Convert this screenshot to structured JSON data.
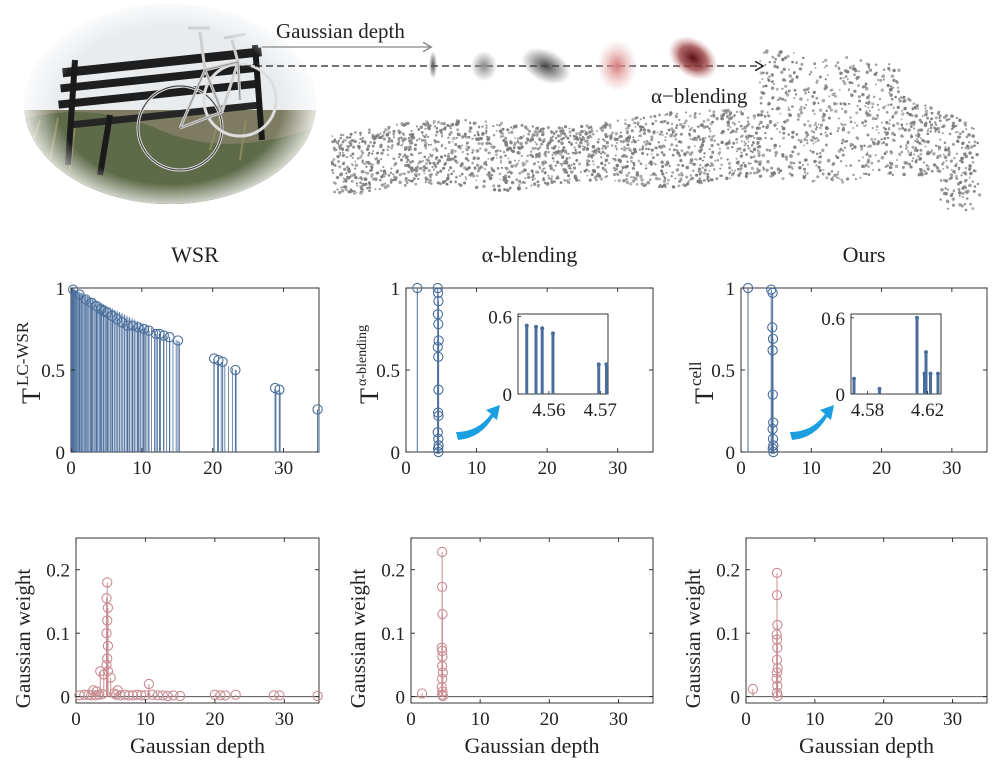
{
  "colors": {
    "stem_blue": "#4a6e9c",
    "stem_pink": "#c98d92",
    "arrow_cyan": "#1a9fe0",
    "axis": "#222222",
    "cloud_grey": "#7a7a7a",
    "gauss_dark": "#6b1c1c",
    "gauss_red": "#d88a8a",
    "gauss_grey": "#6f6f6f"
  },
  "illustration": {
    "depth_label": "Gaussian depth",
    "blend_label": "α−blending",
    "image_icon": "bench-bicycle-photo-icon",
    "cloud_icon": "point-cloud-icon"
  },
  "chart_data": [
    {
      "type": "stem",
      "id": "wsr-transmittance",
      "title": "WSR",
      "ylabel": "T",
      "ylabel_sup": "LC-WSR",
      "xlim": [
        0,
        35
      ],
      "ylim": [
        0,
        1
      ],
      "xticks": [
        "0",
        "10",
        "20",
        "30"
      ],
      "yticks": [
        "0",
        "0.5",
        "1"
      ],
      "grid": false,
      "markers": [
        [
          0.3,
          0.99
        ],
        [
          1.2,
          0.96
        ],
        [
          2.1,
          0.93
        ],
        [
          2.9,
          0.91
        ],
        [
          3.6,
          0.89
        ],
        [
          4.2,
          0.87
        ],
        [
          4.6,
          0.86
        ],
        [
          5.1,
          0.85
        ],
        [
          5.8,
          0.83
        ],
        [
          6.5,
          0.81
        ],
        [
          7.2,
          0.79
        ],
        [
          8.0,
          0.77
        ],
        [
          8.7,
          0.77
        ],
        [
          9.5,
          0.76
        ],
        [
          10.3,
          0.75
        ],
        [
          11.0,
          0.74
        ],
        [
          12.0,
          0.72
        ],
        [
          12.5,
          0.72
        ],
        [
          13.1,
          0.71
        ],
        [
          13.9,
          0.7
        ],
        [
          15.1,
          0.68
        ],
        [
          20.2,
          0.57
        ],
        [
          20.8,
          0.56
        ],
        [
          21.4,
          0.55
        ],
        [
          23.2,
          0.5
        ],
        [
          28.8,
          0.39
        ],
        [
          29.4,
          0.38
        ],
        [
          34.8,
          0.26
        ]
      ],
      "stem_fill": [
        [
          0.05,
          1.0
        ],
        [
          35.0,
          0.25
        ]
      ],
      "stem_fill_count": 90
    },
    {
      "type": "stem",
      "id": "alpha-transmittance",
      "title": "α-blending",
      "ylabel": "T",
      "ylabel_sup": "α-blending",
      "xlim": [
        0,
        35
      ],
      "ylim": [
        0,
        1
      ],
      "xticks": [
        "0",
        "10",
        "20",
        "30"
      ],
      "yticks": [
        "0",
        "0.5",
        "1"
      ],
      "grid": false,
      "markers": [
        [
          1.6,
          1.0
        ],
        [
          4.5,
          1.0
        ],
        [
          4.55,
          0.97
        ],
        [
          4.6,
          0.92
        ],
        [
          4.52,
          0.84
        ],
        [
          4.58,
          0.78
        ],
        [
          4.62,
          0.68
        ],
        [
          4.5,
          0.64
        ],
        [
          4.57,
          0.58
        ],
        [
          4.6,
          0.38
        ],
        [
          4.55,
          0.24
        ],
        [
          4.6,
          0.22
        ],
        [
          4.5,
          0.12
        ],
        [
          4.58,
          0.08
        ],
        [
          4.62,
          0.04
        ],
        [
          4.55,
          0.02
        ],
        [
          4.6,
          0.0
        ]
      ],
      "inset": {
        "xlim": [
          4.554,
          4.5715
        ],
        "ylim": [
          0,
          0.62
        ],
        "xticks": [
          "4.56",
          "4.57"
        ],
        "xtick_vals": [
          4.56,
          4.57
        ],
        "yticks": [
          "0",
          "0.6"
        ],
        "ytick_vals": [
          0,
          0.6
        ],
        "stems": [
          [
            4.5557,
            0.53
          ],
          [
            4.5575,
            0.52
          ],
          [
            4.5587,
            0.51
          ],
          [
            4.5608,
            0.47
          ],
          [
            4.5697,
            0.23
          ],
          [
            4.5712,
            0.23
          ]
        ]
      }
    },
    {
      "type": "stem",
      "id": "ours-transmittance",
      "title": "Ours",
      "ylabel": "T",
      "ylabel_sup": "cell",
      "xlim": [
        0,
        35
      ],
      "ylim": [
        0,
        1
      ],
      "xticks": [
        "0",
        "10",
        "20",
        "30"
      ],
      "yticks": [
        "0",
        "0.5",
        "1"
      ],
      "grid": false,
      "markers": [
        [
          1.0,
          1.0
        ],
        [
          4.3,
          0.99
        ],
        [
          4.5,
          0.97
        ],
        [
          4.45,
          0.76
        ],
        [
          4.55,
          0.69
        ],
        [
          4.5,
          0.62
        ],
        [
          4.52,
          0.35
        ],
        [
          4.58,
          0.18
        ],
        [
          4.5,
          0.14
        ],
        [
          4.55,
          0.08
        ],
        [
          4.6,
          0.04
        ],
        [
          4.52,
          0.02
        ],
        [
          4.6,
          0.0
        ]
      ],
      "inset": {
        "xlim": [
          4.569,
          4.629
        ],
        "ylim": [
          0,
          0.63
        ],
        "xticks": [
          "4.58",
          "4.62"
        ],
        "xtick_vals": [
          4.58,
          4.62
        ],
        "yticks": [
          "0",
          "0.6"
        ],
        "ytick_vals": [
          0,
          0.6
        ],
        "stems": [
          [
            4.571,
            0.12
          ],
          [
            4.588,
            0.04
          ],
          [
            4.613,
            0.6
          ],
          [
            4.618,
            0.16
          ],
          [
            4.619,
            0.33
          ],
          [
            4.622,
            0.16
          ],
          [
            4.627,
            0.16
          ]
        ]
      }
    },
    {
      "type": "stem",
      "id": "wsr-weight",
      "title": "",
      "ylabel": "Gaussian weight",
      "xlabel": "Gaussian depth",
      "xlim": [
        0,
        35
      ],
      "ylim": [
        -0.01,
        0.25
      ],
      "xticks": [
        "0",
        "10",
        "20",
        "30"
      ],
      "yticks": [
        "0",
        "0.1",
        "0.2"
      ],
      "baseline": true,
      "grid": false,
      "markers": [
        [
          4.5,
          0.18
        ],
        [
          4.4,
          0.155
        ],
        [
          4.6,
          0.14
        ],
        [
          4.5,
          0.12
        ],
        [
          4.4,
          0.1
        ],
        [
          4.6,
          0.08
        ],
        [
          4.5,
          0.06
        ],
        [
          4.4,
          0.05
        ],
        [
          4.6,
          0.04
        ],
        [
          3.5,
          0.04
        ],
        [
          4.0,
          0.035
        ],
        [
          5.0,
          0.03
        ],
        [
          6.0,
          0.01
        ],
        [
          10.5,
          0.02
        ],
        [
          2.5,
          0.01
        ],
        [
          3.0,
          0.008
        ],
        [
          5.5,
          0.005
        ],
        [
          0.5,
          0.002
        ],
        [
          1.2,
          0.003
        ],
        [
          1.8,
          0.003
        ],
        [
          2.2,
          0.002
        ],
        [
          2.8,
          0.002
        ],
        [
          3.3,
          0.003
        ],
        [
          3.8,
          0.004
        ],
        [
          5.8,
          0.003
        ],
        [
          6.4,
          0.002
        ],
        [
          7.0,
          0.003
        ],
        [
          7.6,
          0.002
        ],
        [
          8.2,
          0.002
        ],
        [
          8.8,
          0.003
        ],
        [
          9.4,
          0.002
        ],
        [
          10.0,
          0.002
        ],
        [
          11.0,
          0.003
        ],
        [
          11.8,
          0.002
        ],
        [
          12.5,
          0.002
        ],
        [
          13.2,
          0.001
        ],
        [
          14.0,
          0.002
        ],
        [
          15.0,
          0.001
        ],
        [
          20.0,
          0.003
        ],
        [
          20.8,
          0.002
        ],
        [
          21.5,
          0.002
        ],
        [
          23.0,
          0.003
        ],
        [
          28.5,
          0.002
        ],
        [
          29.3,
          0.002
        ],
        [
          34.8,
          0.001
        ]
      ]
    },
    {
      "type": "stem",
      "id": "alpha-weight",
      "title": "",
      "ylabel": "Gaussian weight",
      "xlabel": "Gaussian depth",
      "xlim": [
        0,
        35
      ],
      "ylim": [
        -0.01,
        0.25
      ],
      "xticks": [
        "0",
        "10",
        "20",
        "30"
      ],
      "yticks": [
        "0",
        "0.1",
        "0.2"
      ],
      "baseline": true,
      "grid": false,
      "markers": [
        [
          4.5,
          0.228
        ],
        [
          4.5,
          0.173
        ],
        [
          4.55,
          0.13
        ],
        [
          4.45,
          0.077
        ],
        [
          4.5,
          0.072
        ],
        [
          4.55,
          0.063
        ],
        [
          4.5,
          0.048
        ],
        [
          4.6,
          0.038
        ],
        [
          4.5,
          0.028
        ],
        [
          4.45,
          0.015
        ],
        [
          4.55,
          0.008
        ],
        [
          4.5,
          0.003
        ],
        [
          4.6,
          0.001
        ],
        [
          1.6,
          0.005
        ]
      ]
    },
    {
      "type": "stem",
      "id": "ours-weight",
      "title": "",
      "ylabel": "Gaussian weight",
      "xlabel": "Gaussian depth",
      "xlim": [
        0,
        35
      ],
      "ylim": [
        -0.01,
        0.25
      ],
      "xticks": [
        "0",
        "10",
        "20",
        "30"
      ],
      "yticks": [
        "0",
        "0.1",
        "0.2"
      ],
      "baseline": true,
      "grid": false,
      "markers": [
        [
          4.5,
          0.195
        ],
        [
          4.5,
          0.16
        ],
        [
          4.55,
          0.113
        ],
        [
          4.45,
          0.098
        ],
        [
          4.5,
          0.09
        ],
        [
          4.55,
          0.077
        ],
        [
          4.5,
          0.058
        ],
        [
          4.6,
          0.045
        ],
        [
          4.5,
          0.038
        ],
        [
          4.45,
          0.028
        ],
        [
          4.55,
          0.017
        ],
        [
          4.5,
          0.006
        ],
        [
          4.6,
          0.001
        ],
        [
          1.0,
          0.012
        ]
      ]
    }
  ]
}
